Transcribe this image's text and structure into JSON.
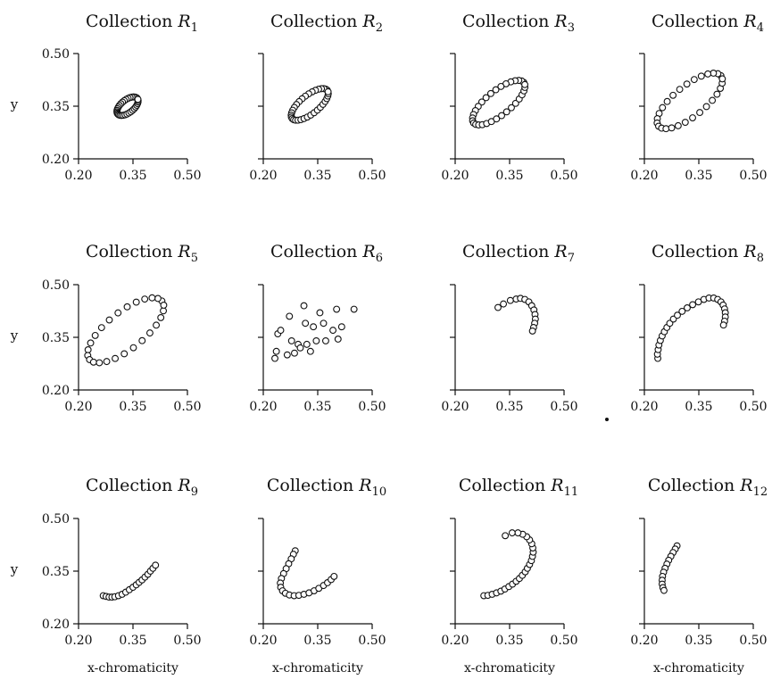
{
  "chart_data": [
    {
      "type": "scatter",
      "title": "Collection R",
      "subscript": "1",
      "xlim": [
        0.2,
        0.5
      ],
      "ylim": [
        0.2,
        0.5
      ],
      "xticks": [
        "0.20",
        "0.35",
        "0.50"
      ],
      "yticks": [
        "0.20",
        "0.35",
        "0.50"
      ],
      "ylabel": "y",
      "xlabel": "",
      "points": {
        "ellipse": {
          "cx": 0.335,
          "cy": 0.35,
          "rx": 0.035,
          "ry": 0.018,
          "angle": 40,
          "n": 34
        }
      }
    },
    {
      "type": "scatter",
      "title": "Collection R",
      "subscript": "2",
      "xlim": [
        0.2,
        0.5
      ],
      "ylim": [
        0.2,
        0.5
      ],
      "xticks": [
        "0.20",
        "0.35",
        "0.50"
      ],
      "yticks": [],
      "ylabel": "",
      "xlabel": "",
      "points": {
        "ellipse": {
          "cx": 0.328,
          "cy": 0.355,
          "rx": 0.063,
          "ry": 0.026,
          "angle": 40,
          "n": 34
        }
      }
    },
    {
      "type": "scatter",
      "title": "Collection R",
      "subscript": "3",
      "xlim": [
        0.2,
        0.5
      ],
      "ylim": [
        0.2,
        0.5
      ],
      "xticks": [
        "0.20",
        "0.35",
        "0.50"
      ],
      "yticks": [],
      "ylabel": "",
      "xlabel": "",
      "points": {
        "ellipse": {
          "cx": 0.32,
          "cy": 0.36,
          "rx": 0.09,
          "ry": 0.034,
          "angle": 40,
          "n": 32
        }
      }
    },
    {
      "type": "scatter",
      "title": "Collection R",
      "subscript": "4",
      "xlim": [
        0.2,
        0.5
      ],
      "ylim": [
        0.2,
        0.5
      ],
      "xticks": [
        "0.20",
        "0.35",
        "0.50"
      ],
      "yticks": [],
      "ylabel": "",
      "xlabel": "",
      "points": {
        "ellipse": {
          "cx": 0.325,
          "cy": 0.365,
          "rx": 0.112,
          "ry": 0.043,
          "angle": 40,
          "n": 28
        }
      }
    },
    {
      "type": "scatter",
      "title": "Collection R",
      "subscript": "5",
      "xlim": [
        0.2,
        0.5
      ],
      "ylim": [
        0.2,
        0.5
      ],
      "xticks": [
        "0.20",
        "0.35",
        "0.50"
      ],
      "yticks": [
        "0.20",
        "0.35",
        "0.50"
      ],
      "ylabel": "y",
      "xlabel": "",
      "points": {
        "ellipse": {
          "cx": 0.33,
          "cy": 0.37,
          "rx": 0.13,
          "ry": 0.052,
          "angle": 40,
          "n": 26
        }
      }
    },
    {
      "type": "scatter",
      "title": "Collection R",
      "subscript": "6",
      "xlim": [
        0.2,
        0.5
      ],
      "ylim": [
        0.2,
        0.5
      ],
      "xticks": [
        "0.20",
        "0.35",
        "0.50"
      ],
      "yticks": [],
      "ylabel": "",
      "xlabel": "",
      "points": [
        [
          0.232,
          0.29
        ],
        [
          0.24,
          0.36
        ],
        [
          0.248,
          0.37
        ],
        [
          0.236,
          0.31
        ],
        [
          0.266,
          0.3
        ],
        [
          0.272,
          0.41
        ],
        [
          0.278,
          0.34
        ],
        [
          0.286,
          0.305
        ],
        [
          0.296,
          0.33
        ],
        [
          0.302,
          0.32
        ],
        [
          0.312,
          0.44
        ],
        [
          0.316,
          0.39
        ],
        [
          0.32,
          0.33
        ],
        [
          0.33,
          0.31
        ],
        [
          0.338,
          0.38
        ],
        [
          0.346,
          0.34
        ],
        [
          0.356,
          0.42
        ],
        [
          0.366,
          0.39
        ],
        [
          0.372,
          0.34
        ],
        [
          0.392,
          0.37
        ],
        [
          0.402,
          0.43
        ],
        [
          0.406,
          0.345
        ],
        [
          0.416,
          0.38
        ],
        [
          0.45,
          0.43
        ]
      ]
    },
    {
      "type": "scatter",
      "title": "Collection R",
      "subscript": "7",
      "xlim": [
        0.2,
        0.5
      ],
      "ylim": [
        0.2,
        0.5
      ],
      "xticks": [
        "0.20",
        "0.35",
        "0.50"
      ],
      "yticks": [],
      "ylabel": "",
      "xlabel": "",
      "points": [
        [
          0.318,
          0.435
        ],
        [
          0.333,
          0.445
        ],
        [
          0.352,
          0.455
        ],
        [
          0.368,
          0.459
        ],
        [
          0.38,
          0.461
        ],
        [
          0.392,
          0.458
        ],
        [
          0.403,
          0.451
        ],
        [
          0.411,
          0.44
        ],
        [
          0.417,
          0.428
        ],
        [
          0.42,
          0.415
        ],
        [
          0.421,
          0.402
        ],
        [
          0.419,
          0.39
        ],
        [
          0.416,
          0.378
        ],
        [
          0.413,
          0.368
        ]
      ]
    },
    {
      "type": "scatter",
      "title": "Collection R",
      "subscript": "8",
      "xlim": [
        0.2,
        0.5
      ],
      "ylim": [
        0.2,
        0.5
      ],
      "xticks": [
        "0.20",
        "0.35",
        "0.50"
      ],
      "yticks": [],
      "ylabel": "",
      "xlabel": "",
      "points": [
        [
          0.237,
          0.29
        ],
        [
          0.236,
          0.302
        ],
        [
          0.238,
          0.315
        ],
        [
          0.24,
          0.328
        ],
        [
          0.244,
          0.341
        ],
        [
          0.249,
          0.354
        ],
        [
          0.255,
          0.366
        ],
        [
          0.262,
          0.378
        ],
        [
          0.27,
          0.39
        ],
        [
          0.28,
          0.402
        ],
        [
          0.291,
          0.413
        ],
        [
          0.304,
          0.424
        ],
        [
          0.318,
          0.434
        ],
        [
          0.333,
          0.443
        ],
        [
          0.349,
          0.451
        ],
        [
          0.364,
          0.458
        ],
        [
          0.378,
          0.462
        ],
        [
          0.391,
          0.462
        ],
        [
          0.402,
          0.458
        ],
        [
          0.411,
          0.451
        ],
        [
          0.417,
          0.442
        ],
        [
          0.421,
          0.431
        ],
        [
          0.423,
          0.42
        ],
        [
          0.423,
          0.408
        ],
        [
          0.421,
          0.396
        ],
        [
          0.418,
          0.385
        ]
      ]
    },
    {
      "type": "scatter",
      "title": "Collection R",
      "subscript": "9",
      "xlim": [
        0.2,
        0.5
      ],
      "ylim": [
        0.2,
        0.5
      ],
      "xticks": [
        "0.20",
        "0.35",
        "0.50"
      ],
      "yticks": [
        "0.20",
        "0.35",
        "0.50"
      ],
      "ylabel": "y",
      "xlabel": "x-chromaticity",
      "points": [
        [
          0.268,
          0.28
        ],
        [
          0.276,
          0.278
        ],
        [
          0.284,
          0.276
        ],
        [
          0.292,
          0.276
        ],
        [
          0.3,
          0.277
        ],
        [
          0.31,
          0.28
        ],
        [
          0.32,
          0.284
        ],
        [
          0.33,
          0.29
        ],
        [
          0.34,
          0.297
        ],
        [
          0.35,
          0.304
        ],
        [
          0.359,
          0.311
        ],
        [
          0.367,
          0.318
        ],
        [
          0.375,
          0.325
        ],
        [
          0.383,
          0.333
        ],
        [
          0.391,
          0.341
        ],
        [
          0.398,
          0.35
        ],
        [
          0.405,
          0.358
        ],
        [
          0.412,
          0.367
        ]
      ]
    },
    {
      "type": "scatter",
      "title": "Collection R",
      "subscript": "10",
      "xlim": [
        0.2,
        0.5
      ],
      "ylim": [
        0.2,
        0.5
      ],
      "xticks": [
        "0.20",
        "0.35",
        "0.50"
      ],
      "yticks": [],
      "ylabel": "",
      "xlabel": "x-chromaticity",
      "points": [
        [
          0.288,
          0.408
        ],
        [
          0.283,
          0.398
        ],
        [
          0.277,
          0.385
        ],
        [
          0.27,
          0.371
        ],
        [
          0.263,
          0.357
        ],
        [
          0.256,
          0.343
        ],
        [
          0.25,
          0.329
        ],
        [
          0.247,
          0.316
        ],
        [
          0.248,
          0.304
        ],
        [
          0.253,
          0.294
        ],
        [
          0.261,
          0.287
        ],
        [
          0.272,
          0.282
        ],
        [
          0.285,
          0.28
        ],
        [
          0.298,
          0.281
        ],
        [
          0.312,
          0.284
        ],
        [
          0.326,
          0.288
        ],
        [
          0.34,
          0.294
        ],
        [
          0.353,
          0.301
        ],
        [
          0.366,
          0.309
        ],
        [
          0.377,
          0.317
        ],
        [
          0.387,
          0.326
        ],
        [
          0.395,
          0.335
        ]
      ]
    },
    {
      "type": "scatter",
      "title": "Collection R",
      "subscript": "11",
      "xlim": [
        0.2,
        0.5
      ],
      "ylim": [
        0.2,
        0.5
      ],
      "xticks": [
        "0.20",
        "0.35",
        "0.50"
      ],
      "yticks": [],
      "ylabel": "",
      "xlabel": "x-chromaticity",
      "points": [
        [
          0.279,
          0.28
        ],
        [
          0.29,
          0.281
        ],
        [
          0.302,
          0.284
        ],
        [
          0.314,
          0.288
        ],
        [
          0.326,
          0.293
        ],
        [
          0.337,
          0.299
        ],
        [
          0.348,
          0.306
        ],
        [
          0.358,
          0.313
        ],
        [
          0.368,
          0.321
        ],
        [
          0.377,
          0.329
        ],
        [
          0.385,
          0.338
        ],
        [
          0.393,
          0.348
        ],
        [
          0.399,
          0.358
        ],
        [
          0.405,
          0.369
        ],
        [
          0.41,
          0.38
        ],
        [
          0.413,
          0.392
        ],
        [
          0.415,
          0.404
        ],
        [
          0.414,
          0.416
        ],
        [
          0.411,
          0.428
        ],
        [
          0.405,
          0.439
        ],
        [
          0.397,
          0.448
        ],
        [
          0.386,
          0.455
        ],
        [
          0.373,
          0.459
        ],
        [
          0.357,
          0.459
        ],
        [
          0.338,
          0.451
        ]
      ]
    },
    {
      "type": "scatter",
      "title": "Collection R",
      "subscript": "12",
      "xlim": [
        0.2,
        0.5
      ],
      "ylim": [
        0.2,
        0.5
      ],
      "xticks": [
        "0.20",
        "0.35",
        "0.50"
      ],
      "yticks": [],
      "ylabel": "",
      "xlabel": "x-chromaticity",
      "points": [
        [
          0.29,
          0.422
        ],
        [
          0.285,
          0.413
        ],
        [
          0.279,
          0.403
        ],
        [
          0.273,
          0.392
        ],
        [
          0.267,
          0.381
        ],
        [
          0.262,
          0.37
        ],
        [
          0.257,
          0.358
        ],
        [
          0.253,
          0.347
        ],
        [
          0.25,
          0.335
        ],
        [
          0.249,
          0.324
        ],
        [
          0.249,
          0.313
        ],
        [
          0.251,
          0.303
        ],
        [
          0.254,
          0.295
        ]
      ]
    }
  ]
}
